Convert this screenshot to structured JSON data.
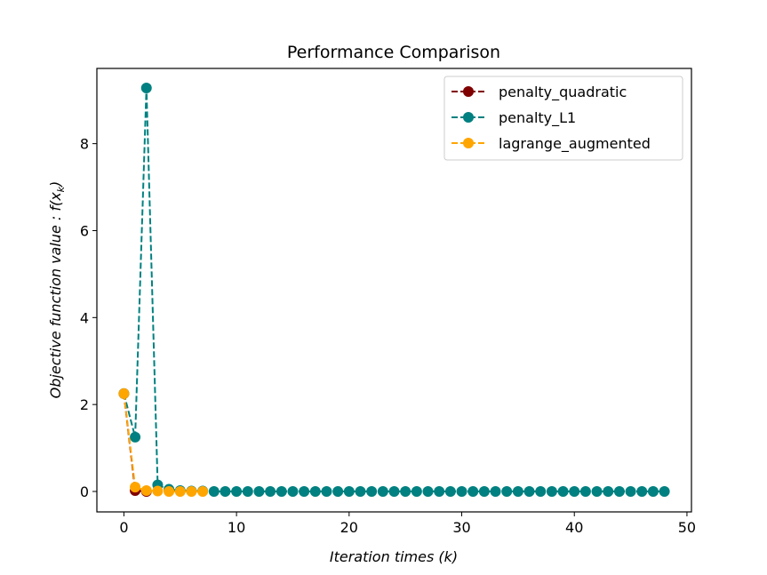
{
  "chart_data": {
    "type": "line",
    "title": "Performance Comparison",
    "xlabel": "Iteration times (k)",
    "ylabel": "Objective function value : f(x_k)",
    "xlim": [
      -2.4,
      50.4
    ],
    "ylim": [
      -0.47,
      9.73
    ],
    "xticks": [
      0,
      10,
      20,
      30,
      40,
      50
    ],
    "yticks": [
      0,
      2,
      4,
      6,
      8
    ],
    "legend_position": "top-right",
    "grid": false,
    "series": [
      {
        "name": "penalty_quadratic",
        "color": "#800000",
        "x": [
          0,
          1,
          2
        ],
        "y": [
          2.25,
          0.02,
          0.0
        ]
      },
      {
        "name": "penalty_L1",
        "color": "#008080",
        "x": [
          0,
          1,
          2,
          3,
          4,
          5,
          6,
          7,
          8,
          9,
          10,
          11,
          12,
          13,
          14,
          15,
          16,
          17,
          18,
          19,
          20,
          21,
          22,
          23,
          24,
          25,
          26,
          27,
          28,
          29,
          30,
          31,
          32,
          33,
          34,
          35,
          36,
          37,
          38,
          39,
          40,
          41,
          42,
          43,
          44,
          45,
          46,
          47,
          48
        ],
        "y": [
          2.25,
          1.25,
          9.28,
          0.15,
          0.05,
          0.02,
          0.01,
          0.01,
          0.0,
          0.0,
          0.0,
          0.0,
          0.0,
          0.0,
          0.0,
          0.0,
          0.0,
          0.0,
          0.0,
          0.0,
          0.0,
          0.0,
          0.0,
          0.0,
          0.0,
          0.0,
          0.0,
          0.0,
          0.0,
          0.0,
          0.0,
          0.0,
          0.0,
          0.0,
          0.0,
          0.0,
          0.0,
          0.0,
          0.0,
          0.0,
          0.0,
          0.0,
          0.0,
          0.0,
          0.0,
          0.0,
          0.0,
          0.0,
          0.0
        ]
      },
      {
        "name": "lagrange_augmented",
        "color": "#FFA500",
        "x": [
          0,
          1,
          2,
          3,
          4,
          5,
          6,
          7
        ],
        "y": [
          2.25,
          0.1,
          0.02,
          0.01,
          0.0,
          0.0,
          0.0,
          0.0
        ]
      }
    ]
  }
}
